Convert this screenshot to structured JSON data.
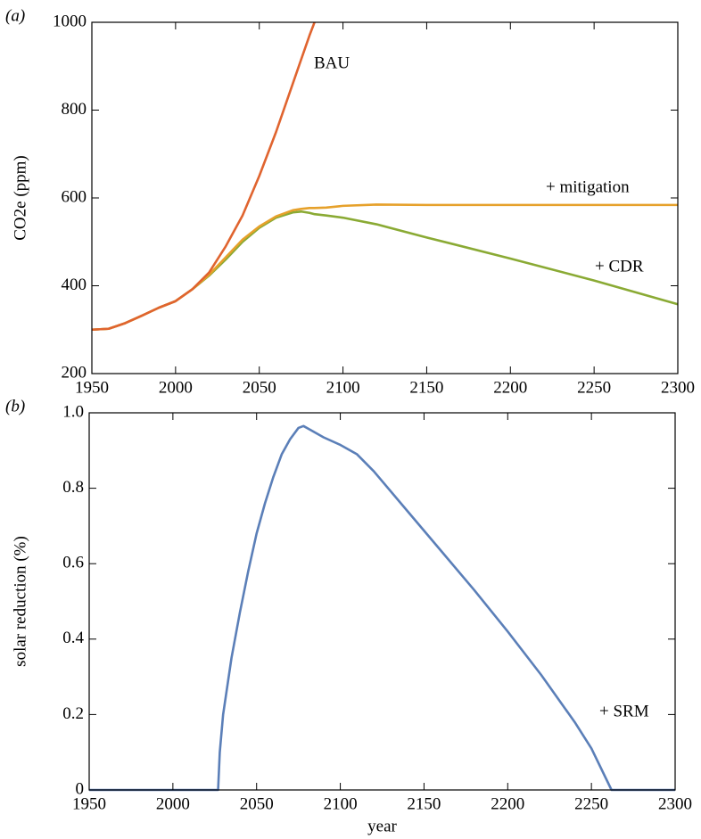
{
  "chart_data": [
    {
      "type": "line",
      "title": "(a)",
      "y_label": "CO2e (ppm)",
      "x": [
        1950,
        1960,
        1970,
        1980,
        1990,
        2000,
        2010,
        2020,
        2030,
        2040,
        2050,
        2060,
        2070,
        2075,
        2080,
        2083,
        2090,
        2100,
        2120,
        2150,
        2200,
        2250,
        2300
      ],
      "series": [
        {
          "name": "BAU",
          "color": "#e0642f",
          "values": [
            300,
            302,
            315,
            332,
            350,
            365,
            392,
            430,
            490,
            560,
            650,
            750,
            860,
            915,
            970,
            1000,
            null,
            null,
            null,
            null,
            null,
            null,
            null
          ]
        },
        {
          "name": "+ mitigation",
          "color": "#e6a12b",
          "values": [
            300,
            302,
            315,
            332,
            350,
            365,
            392,
            425,
            465,
            505,
            535,
            558,
            572,
            575,
            577,
            577,
            578,
            582,
            585,
            584,
            584,
            584,
            584
          ]
        },
        {
          "name": "+ CDR",
          "color": "#8aaa34",
          "values": [
            300,
            302,
            315,
            332,
            350,
            365,
            392,
            423,
            460,
            500,
            532,
            555,
            567,
            569,
            566,
            563,
            560,
            555,
            540,
            510,
            462,
            412,
            358
          ]
        }
      ],
      "xlim": [
        1950,
        2300
      ],
      "xticks": [
        1950,
        2000,
        2050,
        2100,
        2150,
        2200,
        2250,
        2300
      ],
      "ylim": [
        200,
        1000
      ],
      "yticks": [
        200,
        400,
        600,
        800,
        1000
      ]
    },
    {
      "type": "line",
      "title": "(b)",
      "x_label": "year",
      "y_label": "solar reduction (%)",
      "x": [
        1950,
        2027,
        2028,
        2030,
        2035,
        2040,
        2045,
        2050,
        2055,
        2060,
        2065,
        2070,
        2075,
        2078,
        2082,
        2090,
        2100,
        2110,
        2120,
        2140,
        2160,
        2180,
        2200,
        2220,
        2240,
        2250,
        2262,
        2300
      ],
      "series": [
        {
          "name": "+ SRM",
          "color": "#5b7fb8",
          "values": [
            0,
            0,
            0.1,
            0.2,
            0.35,
            0.47,
            0.58,
            0.68,
            0.76,
            0.83,
            0.89,
            0.93,
            0.96,
            0.965,
            0.955,
            0.935,
            0.915,
            0.89,
            0.845,
            0.74,
            0.635,
            0.53,
            0.42,
            0.305,
            0.18,
            0.11,
            0,
            0
          ]
        }
      ],
      "xlim": [
        1950,
        2300
      ],
      "xticks": [
        1950,
        2000,
        2050,
        2100,
        2150,
        2200,
        2250,
        2300
      ],
      "ylim": [
        0,
        1
      ],
      "yticks": [
        0,
        0.2,
        0.4,
        0.6,
        0.8,
        {
          "value": 1,
          "label": "1.0"
        }
      ]
    }
  ]
}
